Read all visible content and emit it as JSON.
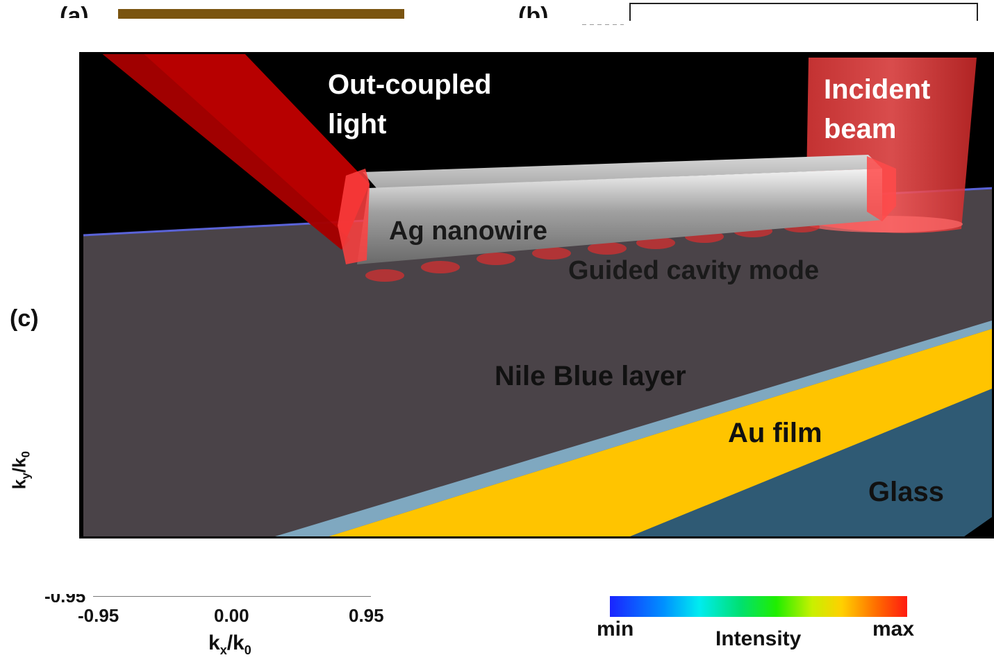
{
  "panel_labels": {
    "a": "(a)",
    "b": "(b)",
    "c": "(c)"
  },
  "scene_labels": {
    "out_coupled": [
      "Out-coupled",
      "light"
    ],
    "incident": [
      "Incident",
      "beam"
    ],
    "nanowire": "Ag nanowire",
    "guided": "Guided cavity mode",
    "nile_blue": "Nile Blue layer",
    "au_film": "Au film",
    "glass": "Glass"
  },
  "axis": {
    "y_label_base": "k",
    "y_label_sub": "y",
    "y_label_mid": "/k",
    "y_label_sub2": "0",
    "x_label_base": "k",
    "x_label_sub": "x",
    "x_label_mid": "/k",
    "x_label_sub2": "0",
    "x_ticks": [
      "-0.95",
      "0.00",
      "0.95"
    ],
    "cut_tick": "-0.95"
  },
  "colorbar": {
    "min": "min",
    "max": "max",
    "label": "Intensity"
  },
  "colors": {
    "nile_blue_layer": "#4a4348",
    "au_film": "#ffc400",
    "glass": "#2f5a74",
    "beam_red": "#c10000",
    "background": "#000000"
  }
}
